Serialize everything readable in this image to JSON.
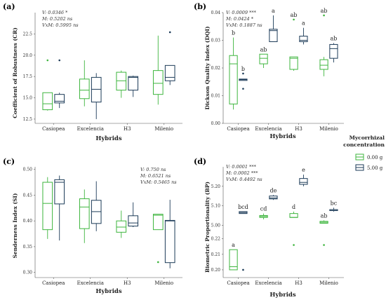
{
  "colors": {
    "g0": "#3db53d",
    "g5": "#1b3a57",
    "axis": "#555555"
  },
  "legend": {
    "title_line1": "Mycorrhizal",
    "title_line2": "concentration",
    "entries": [
      "0.00 g",
      "5.00 g"
    ]
  },
  "chart_data": [
    {
      "type": "box",
      "panel_label": "(a)",
      "xlabel": "Hybrids",
      "ylabel": "Coefficient of Robustness (CR)",
      "categories": [
        "Casiopea",
        "Excelencia",
        "H3",
        "Milenio"
      ],
      "ylim": [
        12.0,
        25.0
      ],
      "yticks": [
        12.5,
        15.0,
        17.5,
        20.0,
        22.5
      ],
      "yticklabels": [
        "12.5",
        "15.0",
        "17.5",
        "20.0",
        "22.5"
      ],
      "stats": [
        "V: 0.0346 *",
        "M: 0.5202 ns",
        "VxM: 0.5995 ns"
      ],
      "sig_letters": [],
      "series": [
        {
          "name": "0.00 g",
          "boxes": [
            {
              "min": 13.5,
              "q1": 13.6,
              "median": 14.3,
              "q3": 15.6,
              "max": 15.6,
              "points": [
                19.4
              ]
            },
            {
              "min": 14.0,
              "q1": 14.9,
              "median": 15.9,
              "q3": 17.2,
              "max": 19.4,
              "points": []
            },
            {
              "min": 15.0,
              "q1": 15.9,
              "median": 17.0,
              "q3": 18.0,
              "max": 18.2,
              "points": []
            },
            {
              "min": 14.2,
              "q1": 15.4,
              "median": 16.7,
              "q3": 18.2,
              "max": 22.3,
              "points": []
            }
          ]
        },
        {
          "name": "5.00 g",
          "boxes": [
            {
              "min": 13.8,
              "q1": 14.4,
              "median": 14.6,
              "q3": 15.4,
              "max": 15.6,
              "points": [
                19.4
              ]
            },
            {
              "min": 12.5,
              "q1": 14.5,
              "median": 16.0,
              "q3": 17.4,
              "max": 17.9,
              "points": []
            },
            {
              "min": 15.1,
              "q1": 15.9,
              "median": 17.4,
              "q3": 17.5,
              "max": 17.6,
              "points": []
            },
            {
              "min": 16.5,
              "q1": 17.0,
              "median": 17.4,
              "q3": 18.8,
              "max": 18.8,
              "points": [
                22.7
              ]
            }
          ]
        }
      ]
    },
    {
      "type": "box",
      "panel_label": "(b)",
      "xlabel": "Hybrids",
      "ylabel": "Dickson Quality Index (DQI)",
      "categories": [
        "Casiopea",
        "Excelencia",
        "H3",
        "Milenio"
      ],
      "ylim": [
        0.0,
        0.04
      ],
      "yticks": [
        0.0,
        0.01,
        0.02,
        0.03,
        0.04
      ],
      "yticklabels": [
        "0.00",
        "0.01",
        "0.02",
        "0.03",
        "0.04"
      ],
      "stats": [
        "V: 0.0009 ***",
        "M: 0.0424 *",
        "VxM: 0.1887 ns"
      ],
      "sig_letters": [
        [
          "b",
          "ab",
          "ab",
          "ab"
        ],
        [
          "b",
          "a",
          "a",
          "ab"
        ]
      ],
      "series": [
        {
          "name": "0.00 g",
          "boxes": [
            {
              "min": 0.005,
              "q1": 0.007,
              "median": 0.0215,
              "q3": 0.0245,
              "max": 0.031,
              "points": []
            },
            {
              "min": 0.02,
              "q1": 0.0215,
              "median": 0.0235,
              "q3": 0.025,
              "max": 0.025,
              "points": []
            },
            {
              "min": 0.019,
              "q1": 0.0195,
              "median": 0.0235,
              "q3": 0.024,
              "max": 0.024,
              "points": [
                0.0375
              ]
            },
            {
              "min": 0.017,
              "q1": 0.0195,
              "median": 0.021,
              "q3": 0.023,
              "max": 0.024,
              "points": [
                0.039
              ]
            }
          ]
        },
        {
          "name": "5.00 g",
          "boxes": [
            {
              "min": 0.0155,
              "q1": 0.0155,
              "median": 0.0158,
              "q3": 0.016,
              "max": 0.016,
              "points": [
                0.018,
                0.0125
              ]
            },
            {
              "min": 0.0295,
              "q1": 0.0295,
              "median": 0.0335,
              "q3": 0.034,
              "max": 0.039,
              "points": []
            },
            {
              "min": 0.0285,
              "q1": 0.0295,
              "median": 0.03,
              "q3": 0.0315,
              "max": 0.0345,
              "points": []
            },
            {
              "min": 0.022,
              "q1": 0.0235,
              "median": 0.027,
              "q3": 0.0285,
              "max": 0.029,
              "points": []
            }
          ]
        }
      ]
    },
    {
      "type": "box",
      "panel_label": "(c)",
      "xlabel": "Hybrids",
      "ylabel": "Senderness Index (SI)",
      "categories": [
        "Casiopea",
        "Excelencia",
        "H3",
        "Milenio"
      ],
      "ylim": [
        0.29,
        0.505
      ],
      "yticks": [
        0.3,
        0.35,
        0.4,
        0.45,
        0.5
      ],
      "yticklabels": [
        "0.30",
        "0.35",
        "0.40",
        "0.45",
        "0.50"
      ],
      "stats": [
        "V: 0.750 ns",
        "M: 0.6521 ns",
        "VxM: 0.5465 ns"
      ],
      "sig_letters": [],
      "series": [
        {
          "name": "0.00 g",
          "boxes": [
            {
              "min": 0.365,
              "q1": 0.383,
              "median": 0.434,
              "q3": 0.475,
              "max": 0.485,
              "points": []
            },
            {
              "min": 0.357,
              "q1": 0.385,
              "median": 0.427,
              "q3": 0.443,
              "max": 0.461,
              "points": []
            },
            {
              "min": 0.367,
              "q1": 0.378,
              "median": 0.388,
              "q3": 0.4,
              "max": 0.42,
              "points": []
            },
            {
              "min": 0.383,
              "q1": 0.383,
              "median": 0.411,
              "q3": 0.413,
              "max": 0.413,
              "points": [
                0.32
              ]
            }
          ]
        },
        {
          "name": "5.00 g",
          "boxes": [
            {
              "min": 0.362,
              "q1": 0.433,
              "median": 0.475,
              "q3": 0.48,
              "max": 0.488,
              "points": []
            },
            {
              "min": 0.38,
              "q1": 0.395,
              "median": 0.418,
              "q3": 0.44,
              "max": 0.477,
              "points": []
            },
            {
              "min": 0.388,
              "q1": 0.39,
              "median": 0.396,
              "q3": 0.41,
              "max": 0.436,
              "points": []
            },
            {
              "min": 0.308,
              "q1": 0.319,
              "median": 0.4,
              "q3": 0.401,
              "max": 0.441,
              "points": []
            }
          ]
        }
      ]
    },
    {
      "type": "box",
      "panel_label": "(d)",
      "xlabel": "Hybrids",
      "ylabel": "Biometric Proportionality (BP)",
      "categories": [
        "Casiopea",
        "Excelencia",
        "H3",
        "Milenio"
      ],
      "ylim": [
        0.19,
        5.35
      ],
      "yticks": [
        0.2,
        0.21,
        0.22,
        5.0,
        5.1,
        5.2
      ],
      "yticklabels": [
        "0.20",
        "0.21",
        "0.22",
        "5.00",
        "5.10",
        "5.20"
      ],
      "stats": [
        "V: 0.0001 ***",
        "M: 0.0002 ***",
        "VxM: 0.4492 ns"
      ],
      "sig_letters": [
        [
          "a",
          "cd",
          "d",
          "ab"
        ],
        [
          "bcd",
          "de",
          "e",
          "bc"
        ]
      ],
      "series": [
        {
          "name": "0.00 g",
          "boxes": [
            {
              "min": 0.2,
              "q1": 0.2,
              "median": 0.202,
              "q3": 0.213,
              "max": 0.213,
              "points": []
            },
            {
              "min": 5.03,
              "q1": 5.04,
              "median": 5.045,
              "q3": 5.05,
              "max": 5.06,
              "points": []
            },
            {
              "min": 5.04,
              "q1": 5.04,
              "median": 5.04,
              "q3": 5.06,
              "max": 5.07,
              "points": [
                0.216
              ]
            },
            {
              "min": 5.01,
              "q1": 5.01,
              "median": 5.015,
              "q3": 5.02,
              "max": 5.025,
              "points": [
                0.216
              ]
            }
          ]
        },
        {
          "name": "5.00 g",
          "boxes": [
            {
              "min": 5.06,
              "q1": 5.06,
              "median": 5.065,
              "q3": 5.07,
              "max": 5.07,
              "points": [
                0.2
              ]
            },
            {
              "min": 5.13,
              "q1": 5.135,
              "median": 5.14,
              "q3": 5.15,
              "max": 5.155,
              "points": []
            },
            {
              "min": 5.2,
              "q1": 5.21,
              "median": 5.22,
              "q3": 5.24,
              "max": 5.26,
              "points": []
            },
            {
              "min": 5.07,
              "q1": 5.075,
              "median": 5.08,
              "q3": 5.08,
              "max": 5.09,
              "points": []
            }
          ]
        }
      ]
    }
  ]
}
